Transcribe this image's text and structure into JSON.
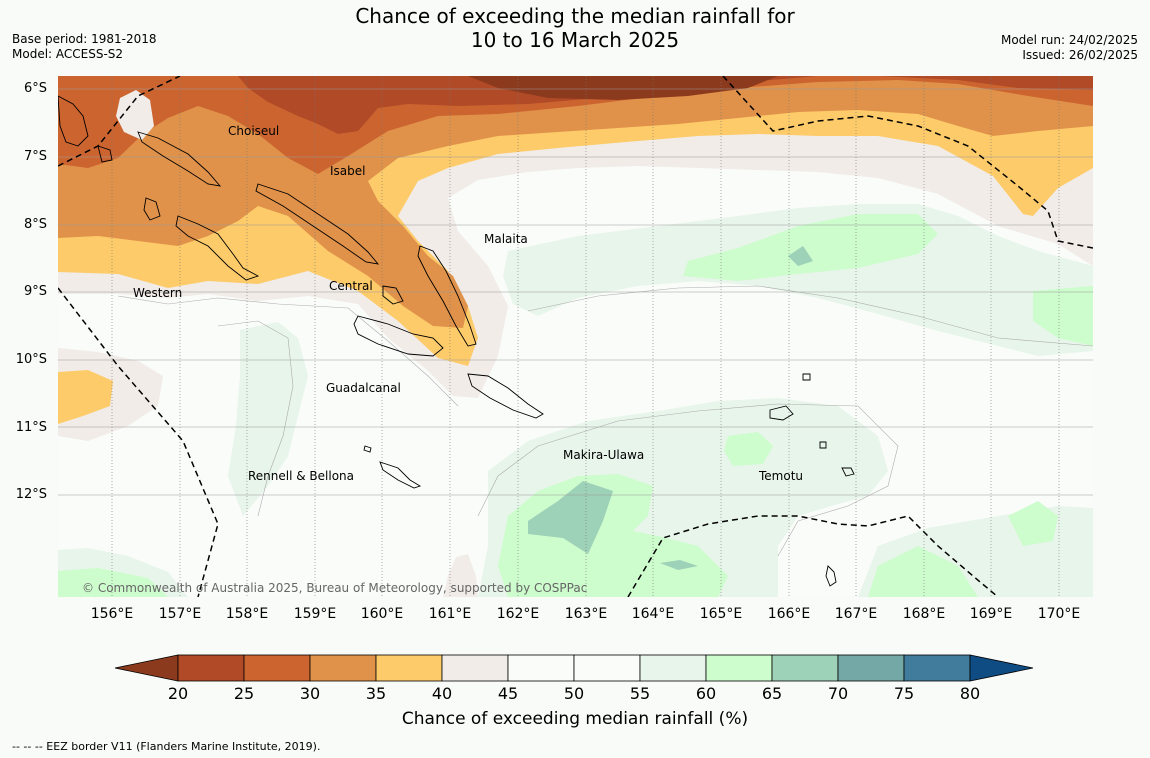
{
  "header": {
    "title_line1": "Chance of exceeding the median rainfall for",
    "title_line2": "10 to 16 March 2025",
    "base_period": "Base period: 1981-2018",
    "model": "Model: ACCESS-S2",
    "model_run": "Model run: 24/02/2025",
    "issued": "Issued: 26/02/2025"
  },
  "axes": {
    "lat_labels": [
      "6°S",
      "7°S",
      "8°S",
      "9°S",
      "10°S",
      "11°S",
      "12°S"
    ],
    "lon_labels": [
      "156°E",
      "157°E",
      "158°E",
      "159°E",
      "160°E",
      "161°E",
      "162°E",
      "163°E",
      "164°E",
      "165°E",
      "166°E",
      "167°E",
      "168°E",
      "169°E",
      "170°E"
    ]
  },
  "places": [
    "Choiseul",
    "Isabel",
    "Malaita",
    "Western",
    "Central",
    "Guadalcanal",
    "Makira-Ulawa",
    "Rennell & Bellona",
    "Temotu"
  ],
  "copyright": "© Commonwealth of Australia 2025, Bureau of Meteorology, supported by COSPPac",
  "colorbar": {
    "ticks": [
      "20",
      "25",
      "30",
      "35",
      "40",
      "45",
      "50",
      "55",
      "60",
      "65",
      "70",
      "75",
      "80"
    ],
    "label": "Chance of exceeding median rainfall (%)",
    "colors": [
      "#8c3a1d",
      "#b04a27",
      "#cc6430",
      "#e0924a",
      "#fdcb6a",
      "#f1ece8",
      "#fafcfa",
      "#fafcfa",
      "#e8f5ea",
      "#cdfccd",
      "#9dd1b8",
      "#73a8a6",
      "#427c9c",
      "#0f4c83"
    ]
  },
  "legend_note": "--  --  -- EEZ border V11 (Flanders Marine Institute, 2019).",
  "map_colors": {
    "p20_25": "#b04a27",
    "p25_30": "#cc6430",
    "p30_35": "#e0924a",
    "p35_40": "#fdcb6a",
    "p40_45": "#f1ece8",
    "p45_55": "#fafcfa",
    "p55_60": "#e8f5ea",
    "p60_65": "#cdfccd",
    "p65_70": "#9dd1b8",
    "p15_20": "#8c3a1d"
  }
}
